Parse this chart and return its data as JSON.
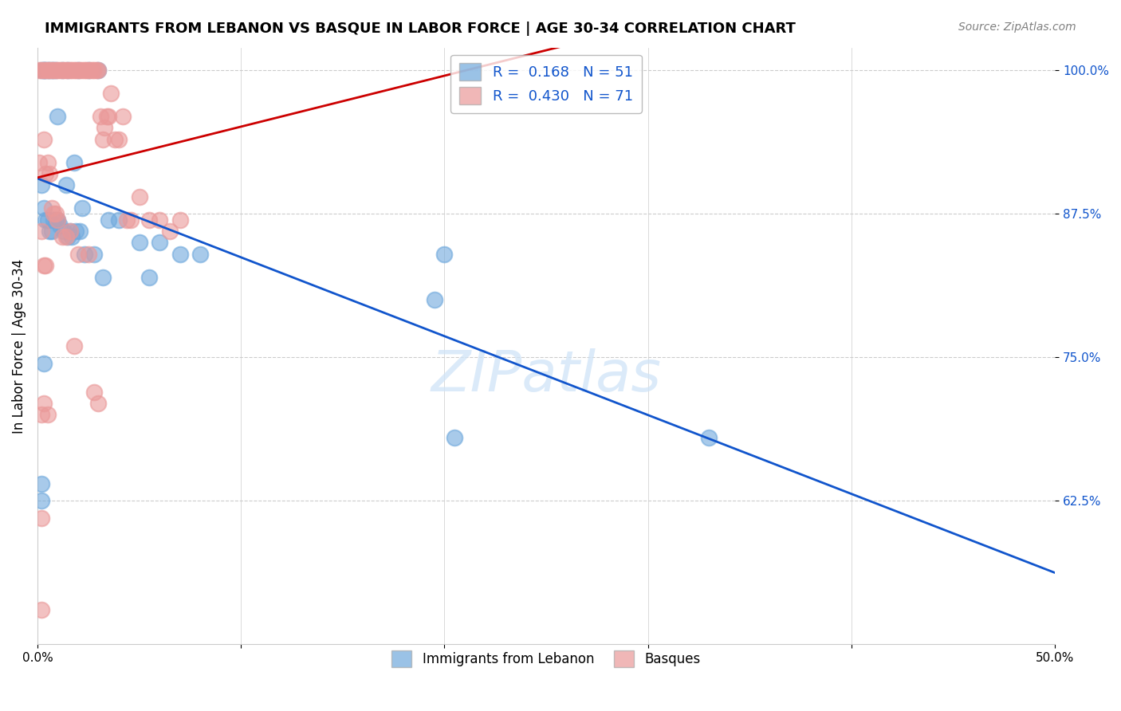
{
  "title": "IMMIGRANTS FROM LEBANON VS BASQUE IN LABOR FORCE | AGE 30-34 CORRELATION CHART",
  "source": "Source: ZipAtlas.com",
  "ylabel": "In Labor Force | Age 30-34",
  "xlim": [
    0.0,
    0.5
  ],
  "ylim": [
    0.5,
    1.02
  ],
  "xticks": [
    0.0,
    0.1,
    0.2,
    0.3,
    0.4,
    0.5
  ],
  "xticklabels": [
    "0.0%",
    "",
    "",
    "",
    "",
    "50.0%"
  ],
  "yticks": [
    0.625,
    0.75,
    0.875,
    1.0
  ],
  "yticklabels": [
    "62.5%",
    "75.0%",
    "87.5%",
    "100.0%"
  ],
  "blue_color": "#6fa8dc",
  "pink_color": "#ea9999",
  "blue_line_color": "#1155cc",
  "pink_line_color": "#cc0000",
  "R_blue": 0.168,
  "N_blue": 51,
  "R_pink": 0.43,
  "N_pink": 71,
  "watermark": "ZIPatlas",
  "legend_labels": [
    "Immigrants from Lebanon",
    "Basques"
  ],
  "blue_scatter_x": [
    0.002,
    0.008,
    0.003,
    0.005,
    0.007,
    0.004,
    0.006,
    0.003,
    0.009,
    0.012,
    0.015,
    0.01,
    0.02,
    0.025,
    0.03,
    0.014,
    0.018,
    0.022,
    0.035,
    0.04,
    0.05,
    0.055,
    0.06,
    0.07,
    0.08,
    0.002,
    0.003,
    0.004,
    0.005,
    0.006,
    0.007,
    0.008,
    0.009,
    0.01,
    0.011,
    0.013,
    0.015,
    0.016,
    0.017,
    0.019,
    0.021,
    0.023,
    0.028,
    0.032,
    0.195,
    0.2,
    0.205,
    0.33,
    0.002,
    0.002,
    0.003
  ],
  "blue_scatter_y": [
    1.0,
    1.0,
    1.0,
    1.0,
    1.0,
    1.0,
    1.0,
    1.0,
    1.0,
    1.0,
    1.0,
    0.96,
    1.0,
    1.0,
    1.0,
    0.9,
    0.92,
    0.88,
    0.87,
    0.87,
    0.85,
    0.82,
    0.85,
    0.84,
    0.84,
    0.9,
    0.88,
    0.87,
    0.87,
    0.86,
    0.86,
    0.87,
    0.87,
    0.87,
    0.865,
    0.86,
    0.855,
    0.86,
    0.855,
    0.86,
    0.86,
    0.84,
    0.84,
    0.82,
    0.8,
    0.84,
    0.68,
    0.68,
    0.625,
    0.64,
    0.745
  ],
  "pink_scatter_x": [
    0.001,
    0.002,
    0.003,
    0.004,
    0.005,
    0.006,
    0.007,
    0.008,
    0.009,
    0.01,
    0.011,
    0.012,
    0.013,
    0.014,
    0.015,
    0.016,
    0.017,
    0.018,
    0.019,
    0.02,
    0.021,
    0.022,
    0.023,
    0.024,
    0.025,
    0.026,
    0.027,
    0.028,
    0.029,
    0.03,
    0.031,
    0.032,
    0.033,
    0.034,
    0.035,
    0.036,
    0.038,
    0.04,
    0.042,
    0.044,
    0.046,
    0.05,
    0.055,
    0.06,
    0.065,
    0.07,
    0.003,
    0.004,
    0.005,
    0.006,
    0.007,
    0.008,
    0.009,
    0.01,
    0.012,
    0.014,
    0.016,
    0.02,
    0.025,
    0.001,
    0.002,
    0.003,
    0.004,
    0.002,
    0.003,
    0.005,
    0.028,
    0.03,
    0.018,
    0.002,
    0.002
  ],
  "pink_scatter_y": [
    1.0,
    1.0,
    1.0,
    1.0,
    1.0,
    1.0,
    1.0,
    1.0,
    1.0,
    1.0,
    1.0,
    1.0,
    1.0,
    1.0,
    1.0,
    1.0,
    1.0,
    1.0,
    1.0,
    1.0,
    1.0,
    1.0,
    1.0,
    1.0,
    1.0,
    1.0,
    1.0,
    1.0,
    1.0,
    1.0,
    0.96,
    0.94,
    0.95,
    0.96,
    0.96,
    0.98,
    0.94,
    0.94,
    0.96,
    0.87,
    0.87,
    0.89,
    0.87,
    0.87,
    0.86,
    0.87,
    0.94,
    0.91,
    0.92,
    0.91,
    0.88,
    0.875,
    0.875,
    0.87,
    0.855,
    0.855,
    0.86,
    0.84,
    0.84,
    0.92,
    0.86,
    0.83,
    0.83,
    0.7,
    0.71,
    0.7,
    0.72,
    0.71,
    0.76,
    0.61,
    0.53
  ]
}
